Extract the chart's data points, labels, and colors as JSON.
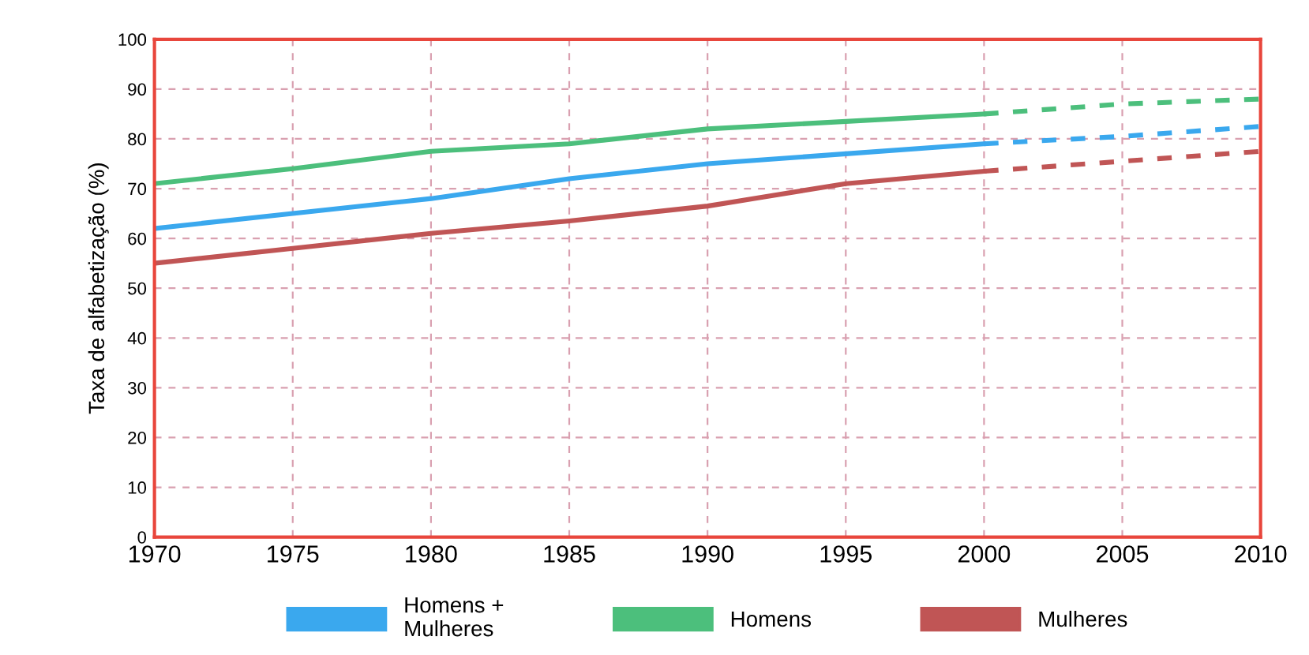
{
  "chart_data": {
    "type": "line",
    "ylabel": "Taxa de alfabetização (%)",
    "x": [
      1970,
      1975,
      1980,
      1985,
      1990,
      1995,
      2000
    ],
    "series": [
      {
        "name": "Homens +\nMulheres",
        "color": "#3aa8ee",
        "values": [
          62,
          65,
          68,
          72,
          75,
          77,
          79
        ]
      },
      {
        "name": "Homens",
        "color": "#4cbf7c",
        "values": [
          71,
          74,
          77.5,
          79,
          82,
          83.5,
          85
        ]
      },
      {
        "name": "Mulheres",
        "color": "#c05555",
        "values": [
          55,
          58,
          61,
          63.5,
          66.5,
          71,
          73.5
        ]
      },
      {
        "color": "#3aa8ee",
        "x": [
          2000,
          2005,
          2010
        ],
        "values": [
          79,
          80.5,
          82.5
        ],
        "line_style": "dashed"
      },
      {
        "color": "#4cbf7c",
        "x": [
          2000,
          2005,
          2010
        ],
        "values": [
          85,
          87,
          88
        ],
        "line_style": "dashed"
      },
      {
        "color": "#c05555",
        "x": [
          2000,
          2005,
          2010
        ],
        "values": [
          73.5,
          75.5,
          77.5
        ],
        "line_style": "dashed"
      }
    ],
    "xlim": [
      1970,
      2010
    ],
    "xticks": [
      1970,
      1975,
      1980,
      1985,
      1990,
      1995,
      2000,
      2005,
      2010
    ],
    "ylim": [
      0,
      100
    ],
    "yticks": [
      0,
      10,
      20,
      30,
      40,
      50,
      60,
      70,
      80,
      90,
      100
    ],
    "grid": true,
    "legend": "bottom",
    "line_style": "solid",
    "marker": "none"
  }
}
